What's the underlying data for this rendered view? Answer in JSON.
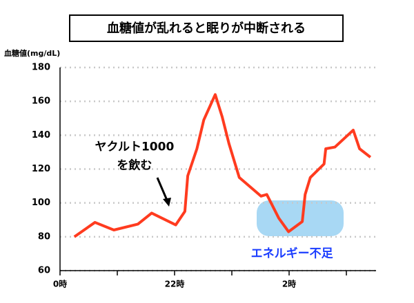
{
  "chart_data": {
    "type": "line",
    "title": "血糖値が乱れると眠りが中断される",
    "y_label": "血糖値(mg/dL)",
    "x": [
      0.25,
      0.61,
      0.94,
      1.36,
      1.6,
      2.02,
      2.18,
      2.23,
      2.39,
      2.51,
      2.71,
      2.83,
      2.95,
      3.13,
      3.51,
      3.61,
      3.82,
      3.99,
      4.23,
      4.28,
      4.37,
      4.61,
      4.64,
      4.8,
      5.12,
      5.23,
      5.42
    ],
    "series": [
      {
        "color": "#ff3b1f",
        "values": [
          80,
          88.5,
          84,
          87.5,
          94,
          87,
          95,
          116,
          132,
          149,
          164,
          151,
          135,
          115,
          104,
          105,
          91,
          83,
          89,
          105,
          115,
          123,
          132,
          133,
          143,
          132,
          127
        ]
      }
    ],
    "xlim": [
      0,
      5.52
    ],
    "xticks": [
      {
        "value": 0,
        "label": "0時"
      },
      {
        "value": 2,
        "label": "22時"
      },
      {
        "value": 4,
        "label": "2時"
      }
    ],
    "xminor_ticks": [
      1,
      3,
      5
    ],
    "ylim": [
      60,
      180
    ],
    "yticks": [
      60,
      80,
      100,
      120,
      140,
      160,
      180
    ],
    "grid": true,
    "annotations": [
      {
        "text": "ヤクルト1000",
        "x": 1.3,
        "y": 133
      },
      {
        "text": "を飲む",
        "x": 1.3,
        "y": 122
      },
      {
        "text": "エネルギー不足",
        "x": 4.05,
        "y": 70,
        "color": "#1a3cff"
      }
    ]
  }
}
